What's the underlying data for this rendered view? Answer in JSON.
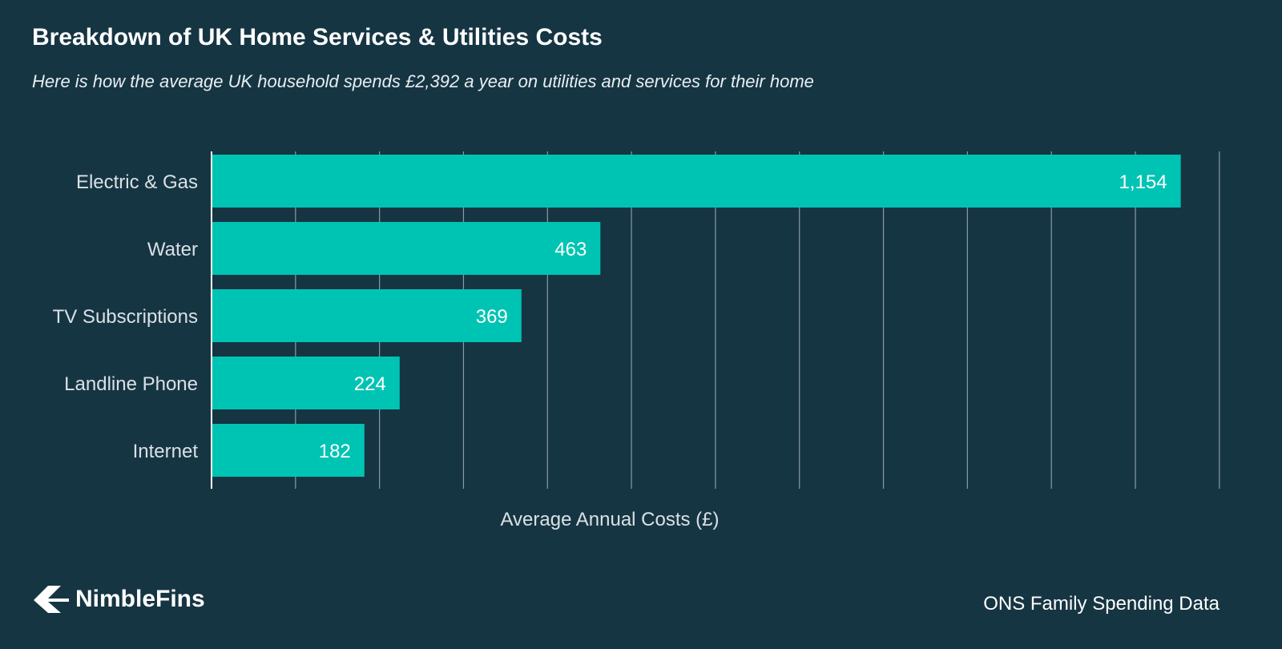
{
  "title": "Breakdown of UK Home Services & Utilities Costs",
  "subtitle": "Here is how the average UK household spends £2,392 a year on utilities and services for their home",
  "brand": {
    "name": "NimbleFins",
    "logo_icon": "nimblefins-logo-icon"
  },
  "source": "ONS Family Spending Data",
  "colors": {
    "background": "#163543",
    "bar": "#00c4b3",
    "grid": "#8a9aa2",
    "axis_text": "#d9e1e5"
  },
  "chart_data": {
    "type": "bar",
    "orientation": "horizontal",
    "categories": [
      "Electric & Gas",
      "Water",
      "TV Subscriptions",
      "Landline Phone",
      "Internet"
    ],
    "values": [
      1154,
      463,
      369,
      224,
      182
    ],
    "value_labels": [
      "1,154",
      "463",
      "369",
      "224",
      "182"
    ],
    "xlabel": "Average Annual Costs (£)",
    "ylabel": "",
    "xlim": [
      0,
      1200
    ],
    "grid_interval": 100,
    "grid": true,
    "legend": false
  }
}
